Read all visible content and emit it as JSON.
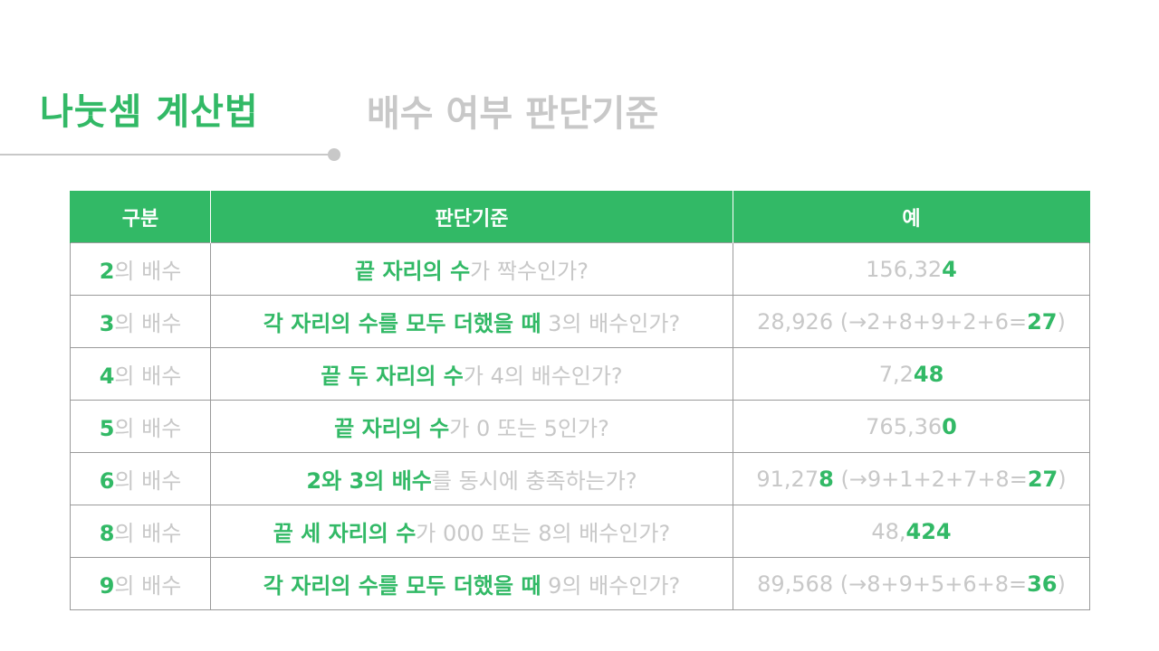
{
  "header": {
    "title": "나눗셈 계산법",
    "subtitle": "배수 여부 판단기준"
  },
  "table": {
    "headers": [
      "구분",
      "판단기준",
      "예"
    ],
    "rows": [
      {
        "category": {
          "num": "2",
          "label": "의 배수"
        },
        "criterion": {
          "green": "끝 자리의 수",
          "gray": "가 짝수인가?"
        },
        "example": {
          "pre": "156,32",
          "hl": "4",
          "post": "",
          "sum": "",
          "total": "",
          "close": ""
        }
      },
      {
        "category": {
          "num": "3",
          "label": "의 배수"
        },
        "criterion": {
          "green": "각 자리의 수를 모두 더했을 때",
          "gray": " 3의 배수인가?"
        },
        "example": {
          "pre": "28,926",
          "hl": "",
          "post": "",
          "sum": " (→2+8+9+2+6=",
          "total": "27",
          "close": ")"
        }
      },
      {
        "category": {
          "num": "4",
          "label": "의 배수"
        },
        "criterion": {
          "green": "끝 두 자리의 수",
          "gray": "가 4의 배수인가?"
        },
        "example": {
          "pre": "7,2",
          "hl": "48",
          "post": "",
          "sum": "",
          "total": "",
          "close": ""
        }
      },
      {
        "category": {
          "num": "5",
          "label": "의 배수"
        },
        "criterion": {
          "green": "끝 자리의 수",
          "gray": "가 0 또는 5인가?"
        },
        "example": {
          "pre": "765,36",
          "hl": "0",
          "post": "",
          "sum": "",
          "total": "",
          "close": ""
        }
      },
      {
        "category": {
          "num": "6",
          "label": "의 배수"
        },
        "criterion": {
          "green": "2와 3의 배수",
          "gray": "를 동시에 충족하는가?"
        },
        "example": {
          "pre": "91,27",
          "hl": "8",
          "post": "",
          "sum": " (→9+1+2+7+8=",
          "total": "27",
          "close": ")"
        }
      },
      {
        "category": {
          "num": "8",
          "label": "의 배수"
        },
        "criterion": {
          "green": "끝 세 자리의 수",
          "gray": "가 000 또는 8의 배수인가?"
        },
        "example": {
          "pre": "48,",
          "hl": "424",
          "post": "",
          "sum": "",
          "total": "",
          "close": ""
        }
      },
      {
        "category": {
          "num": "9",
          "label": "의 배수"
        },
        "criterion": {
          "green": "각 자리의 수를 모두 더했을 때",
          "gray": " 9의 배수인가?"
        },
        "example": {
          "pre": "89,568",
          "hl": "",
          "post": "",
          "sum": " (→8+9+5+6+8=",
          "total": "36",
          "close": ")"
        }
      }
    ]
  },
  "colors": {
    "accent": "#32b966",
    "muted": "#c8c8c8",
    "border": "#9a9a9a"
  }
}
